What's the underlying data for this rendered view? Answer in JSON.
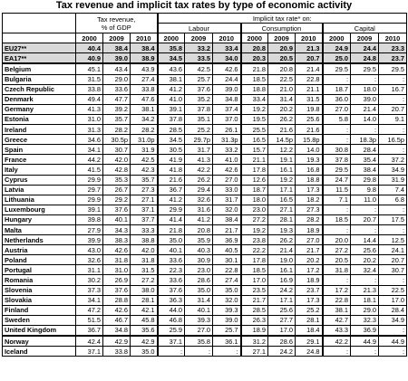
{
  "title": "Tax revenue and implicit tax rates by type of economic activity",
  "headers": {
    "tax_revenue": "Tax revenue,",
    "tax_revenue_sub": "% of GDP",
    "implicit": "Implicit tax rate* on:",
    "labour": "Labour",
    "consumption": "Consumption",
    "capital": "Capital",
    "years": [
      "2000",
      "2009",
      "2010"
    ]
  },
  "rows": [
    {
      "country": "EU27**",
      "values": [
        "40.4",
        "38.4",
        "38.4",
        "35.8",
        "33.2",
        "33.4",
        "20.8",
        "20.9",
        "21.3",
        "24.9",
        "24.4",
        "23.3"
      ],
      "style": "agg"
    },
    {
      "country": "EA17**",
      "values": [
        "40.9",
        "39.0",
        "38.9",
        "34.5",
        "33.5",
        "34.0",
        "20.3",
        "20.5",
        "20.7",
        "25.0",
        "24.8",
        "23.7"
      ],
      "style": "agg"
    },
    {
      "country": "Belgium",
      "values": [
        "45.1",
        "43.4",
        "43.9",
        "43.6",
        "42.5",
        "42.6",
        "21.8",
        "20.8",
        "21.4",
        "29.5",
        "29.5",
        "29.5"
      ]
    },
    {
      "country": "Bulgaria",
      "values": [
        "31.5",
        "29.0",
        "27.4",
        "38.1",
        "25.7",
        "24.4",
        "18.5",
        "22.5",
        "22.8",
        ":",
        ":",
        ":"
      ]
    },
    {
      "country": "Czech Republic",
      "values": [
        "33.8",
        "33.6",
        "33.8",
        "41.2",
        "37.6",
        "39.0",
        "18.8",
        "21.0",
        "21.1",
        "18.7",
        "18.0",
        "16.7"
      ]
    },
    {
      "country": "Denmark",
      "values": [
        "49.4",
        "47.7",
        "47.6",
        "41.0",
        "35.2",
        "34.8",
        "33.4",
        "31.4",
        "31.5",
        "36.0",
        "39.0",
        ":"
      ]
    },
    {
      "country": "Germany",
      "values": [
        "41.3",
        "39.2",
        "38.1",
        "39.1",
        "37.8",
        "37.4",
        "19.2",
        "20.2",
        "19.8",
        "27.0",
        "21.4",
        "20.7"
      ]
    },
    {
      "country": "Estonia",
      "values": [
        "31.0",
        "35.7",
        "34.2",
        "37.8",
        "35.1",
        "37.0",
        "19.5",
        "26.2",
        "25.6",
        "5.8",
        "14.0",
        "9.1"
      ]
    },
    {
      "country": "Ireland",
      "values": [
        "31.3",
        "28.2",
        "28.2",
        "28.5",
        "25.2",
        "26.1",
        "25.5",
        "21.6",
        "21.6",
        ":",
        ":",
        ":"
      ]
    },
    {
      "country": "Greece",
      "values": [
        "34.6",
        "30.5p",
        "31.0p",
        "34.5",
        "29.7p",
        "31.3p",
        "16.5",
        "14.5p",
        "15.8p",
        ":",
        "18.3p",
        "16.5p"
      ]
    },
    {
      "country": "Spain",
      "values": [
        "34.1",
        "30.7",
        "31.9",
        "30.5",
        "31.7",
        "33.2",
        "15.7",
        "12.2",
        "14.0",
        "30.8",
        "28.4",
        ":"
      ]
    },
    {
      "country": "France",
      "values": [
        "44.2",
        "42.0",
        "42.5",
        "41.9",
        "41.3",
        "41.0",
        "21.1",
        "19.1",
        "19.3",
        "37.8",
        "35.4",
        "37.2"
      ]
    },
    {
      "country": "Italy",
      "values": [
        "41.5",
        "42.8",
        "42.3",
        "41.8",
        "42.2",
        "42.6",
        "17.8",
        "16.1",
        "16.8",
        "29.5",
        "38.4",
        "34.9"
      ]
    },
    {
      "country": "Cyprus",
      "values": [
        "29.9",
        "35.3",
        "35.7",
        "21.6",
        "26.2",
        "27.0",
        "12.6",
        "19.2",
        "18.8",
        "24.7",
        "29.8",
        "31.9"
      ]
    },
    {
      "country": "Latvia",
      "values": [
        "29.7",
        "26.7",
        "27.3",
        "36.7",
        "29.4",
        "33.0",
        "18.7",
        "17.1",
        "17.3",
        "11.5",
        "9.8",
        "7.4"
      ]
    },
    {
      "country": "Lithuania",
      "values": [
        "29.9",
        "29.2",
        "27.1",
        "41.2",
        "32.6",
        "31.7",
        "18.0",
        "16.5",
        "18.2",
        "7.1",
        "11.0",
        "6.8"
      ]
    },
    {
      "country": "Luxembourg",
      "values": [
        "39.1",
        "37.6",
        "37.1",
        "29.9",
        "31.6",
        "32.0",
        "23.0",
        "27.1",
        "27.3",
        ":",
        ":",
        ":"
      ]
    },
    {
      "country": "Hungary",
      "values": [
        "39.8",
        "40.1",
        "37.7",
        "41.4",
        "41.2",
        "38.4",
        "27.2",
        "28.1",
        "28.2",
        "18.5",
        "20.7",
        "17.5"
      ]
    },
    {
      "country": "Malta",
      "values": [
        "27.9",
        "34.3",
        "33.3",
        "21.8",
        "20.8",
        "21.7",
        "19.2",
        "19.3",
        "18.9",
        ":",
        ":",
        ":"
      ]
    },
    {
      "country": "Netherlands",
      "values": [
        "39.9",
        "38.3",
        "38.8",
        "35.0",
        "35.9",
        "36.9",
        "23.8",
        "26.2",
        "27.0",
        "20.0",
        "14.4",
        "12.5"
      ]
    },
    {
      "country": "Austria",
      "values": [
        "43.0",
        "42.6",
        "42.0",
        "40.1",
        "40.3",
        "40.5",
        "22.2",
        "21.4",
        "21.7",
        "27.2",
        "25.6",
        "24.1"
      ]
    },
    {
      "country": "Poland",
      "values": [
        "32.6",
        "31.8",
        "31.8",
        "33.6",
        "30.9",
        "30.1",
        "17.8",
        "19.0",
        "20.2",
        "20.5",
        "20.2",
        "20.7"
      ]
    },
    {
      "country": "Portugal",
      "values": [
        "31.1",
        "31.0",
        "31.5",
        "22.3",
        "23.0",
        "22.8",
        "18.5",
        "16.1",
        "17.2",
        "31.8",
        "32.4",
        "30.7"
      ]
    },
    {
      "country": "Romania",
      "values": [
        "30.2",
        "26.9",
        "27.2",
        "33.6",
        "28.6",
        "27.4",
        "17.0",
        "16.9",
        "18.9",
        ":",
        ":",
        ":"
      ]
    },
    {
      "country": "Slovenia",
      "values": [
        "37.3",
        "37.6",
        "38.0",
        "37.6",
        "35.0",
        "35.0",
        "23.5",
        "24.2",
        "23.7",
        "17.2",
        "21.3",
        "22.5"
      ]
    },
    {
      "country": "Slovakia",
      "values": [
        "34.1",
        "28.8",
        "28.1",
        "36.3",
        "31.4",
        "32.0",
        "21.7",
        "17.1",
        "17.3",
        "22.8",
        "18.1",
        "17.0"
      ]
    },
    {
      "country": "Finland",
      "values": [
        "47.2",
        "42.6",
        "42.1",
        "44.0",
        "40.1",
        "39.3",
        "28.5",
        "25.6",
        "25.2",
        "38.1",
        "29.0",
        "28.4"
      ]
    },
    {
      "country": "Sweden",
      "values": [
        "51.5",
        "46.7",
        "45.8",
        "46.8",
        "39.3",
        "39.0",
        "26.3",
        "27.7",
        "28.1",
        "42.7",
        "32.3",
        "34.9"
      ]
    },
    {
      "country": "United Kingdom",
      "values": [
        "36.7",
        "34.8",
        "35.6",
        "25.9",
        "27.0",
        "25.7",
        "18.9",
        "17.0",
        "18.4",
        "43.3",
        "36.9",
        ":"
      ]
    },
    {
      "country": "Norway",
      "values": [
        "42.4",
        "42.9",
        "42.9",
        "37.1",
        "35.8",
        "36.1",
        "31.2",
        "28.6",
        "29.1",
        "42.2",
        "44.9",
        "44.9"
      ],
      "style": "nonEU"
    },
    {
      "country": "Iceland",
      "values": [
        "37.1",
        "33.8",
        "35.0",
        ":",
        ":",
        ":",
        "27.1",
        "24.2",
        "24.8",
        ":",
        ":",
        ":"
      ]
    }
  ]
}
